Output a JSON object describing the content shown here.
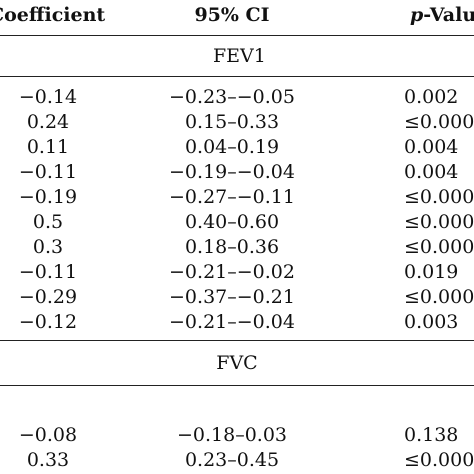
{
  "header": {
    "coefficient": "Coefficient",
    "ci": "95% CI",
    "pvalue_prefix": "p",
    "pvalue_suffix": "-Value"
  },
  "sections": [
    {
      "label": "FEV1",
      "rows": [
        {
          "coefficient": "−0.14",
          "ci": "−0.23–−0.05",
          "p": "0.002"
        },
        {
          "coefficient": "0.24",
          "ci": "0.15–0.33",
          "p": "≤0.000"
        },
        {
          "coefficient": "0.11",
          "ci": "0.04–0.19",
          "p": "0.004"
        },
        {
          "coefficient": "−0.11",
          "ci": "−0.19–−0.04",
          "p": "0.004"
        },
        {
          "coefficient": "−0.19",
          "ci": "−0.27–−0.11",
          "p": "≤0.000"
        },
        {
          "coefficient": "0.5",
          "ci": "0.40–0.60",
          "p": "≤0.000"
        },
        {
          "coefficient": "0.3",
          "ci": "0.18–0.36",
          "p": "≤0.000"
        },
        {
          "coefficient": "−0.11",
          "ci": "−0.21–−0.02",
          "p": "0.019"
        },
        {
          "coefficient": "−0.29",
          "ci": "−0.37–−0.21",
          "p": "≤0.000"
        },
        {
          "coefficient": "−0.12",
          "ci": "−0.21–−0.04",
          "p": "0.003"
        }
      ]
    },
    {
      "label": "FVC",
      "rows": [
        {
          "coefficient": "−0.08",
          "ci": "−0.18–0.03",
          "p": "0.138"
        },
        {
          "coefficient": "0.33",
          "ci": "0.23–0.45",
          "p": "≤0.000"
        }
      ]
    }
  ]
}
